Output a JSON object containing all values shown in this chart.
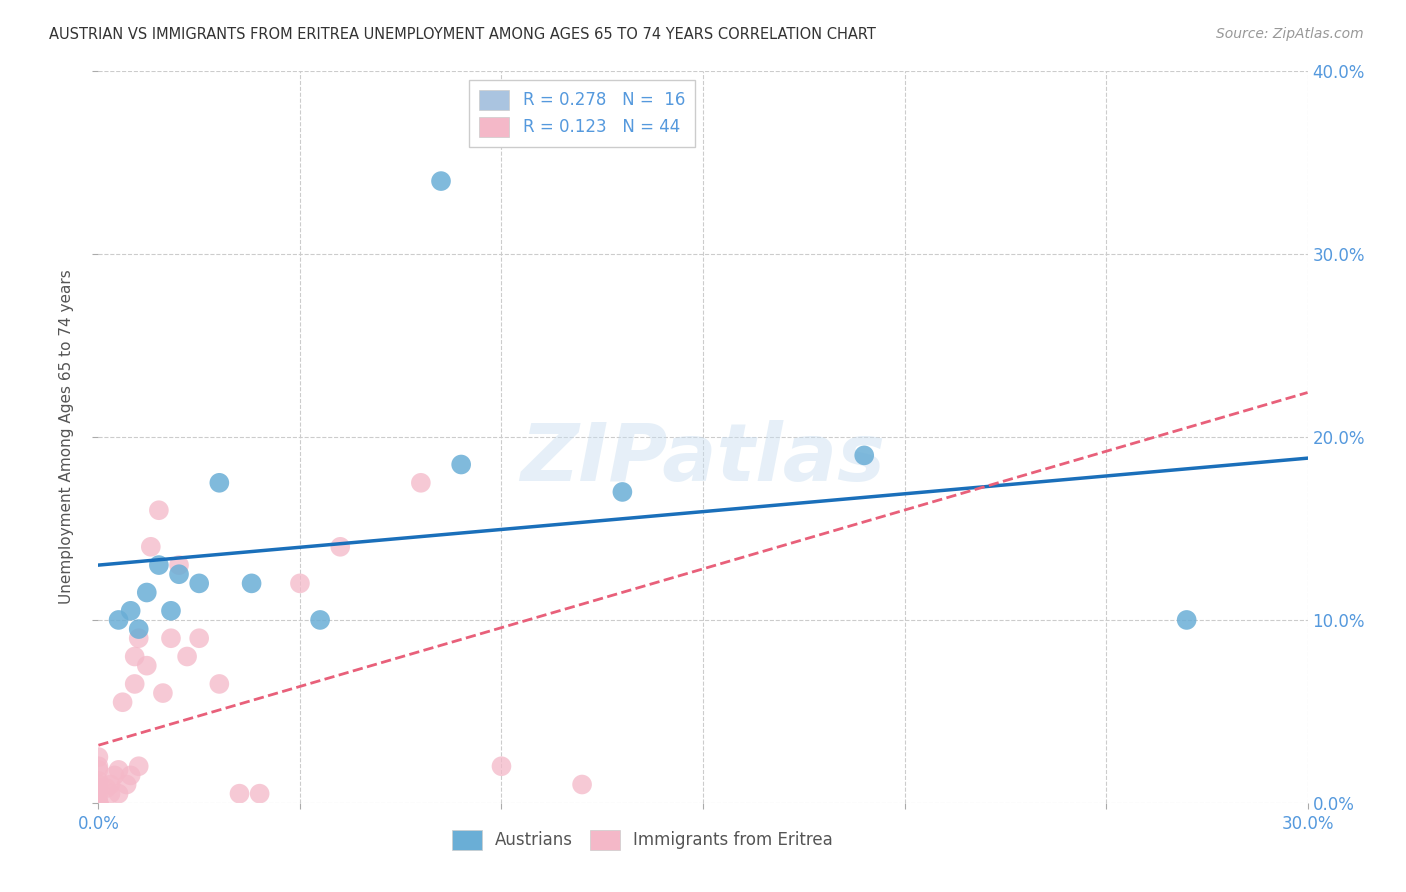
{
  "title": "AUSTRIAN VS IMMIGRANTS FROM ERITREA UNEMPLOYMENT AMONG AGES 65 TO 74 YEARS CORRELATION CHART",
  "source": "Source: ZipAtlas.com",
  "ylabel": "Unemployment Among Ages 65 to 74 years",
  "xlim": [
    0.0,
    0.3
  ],
  "ylim": [
    0.0,
    0.4
  ],
  "xticks": [
    0.0,
    0.05,
    0.1,
    0.15,
    0.2,
    0.25,
    0.3
  ],
  "yticks": [
    0.0,
    0.1,
    0.2,
    0.3,
    0.4
  ],
  "background_color": "#ffffff",
  "grid_color": "#cccccc",
  "watermark_text": "ZIPatlas",
  "legend_entries": [
    {
      "label_r": "R = ",
      "r_val": "0.278",
      "label_n": "  N = ",
      "n_val": " 16",
      "color": "#aac4e0"
    },
    {
      "label_r": "R = ",
      "r_val": "0.123",
      "label_n": "  N = ",
      "n_val": "44",
      "color": "#f4b8c8"
    }
  ],
  "bottom_legend": [
    "Austrians",
    "Immigrants from Eritrea"
  ],
  "austrians": {
    "scatter_color": "#6aaed6",
    "line_color": "#1a6fba",
    "x": [
      0.005,
      0.008,
      0.01,
      0.012,
      0.015,
      0.018,
      0.02,
      0.025,
      0.03,
      0.038,
      0.055,
      0.085,
      0.09,
      0.13,
      0.19,
      0.27
    ],
    "y": [
      0.1,
      0.105,
      0.095,
      0.115,
      0.13,
      0.105,
      0.125,
      0.12,
      0.175,
      0.12,
      0.1,
      0.34,
      0.185,
      0.17,
      0.19,
      0.1
    ]
  },
  "eritreans": {
    "scatter_color": "#f4b8c8",
    "line_color": "#e8607a",
    "x": [
      0.0,
      0.0,
      0.0,
      0.0,
      0.0,
      0.0,
      0.0,
      0.0,
      0.0,
      0.0,
      0.0,
      0.0,
      0.0,
      0.0,
      0.0,
      0.002,
      0.003,
      0.003,
      0.004,
      0.005,
      0.005,
      0.006,
      0.007,
      0.008,
      0.009,
      0.009,
      0.01,
      0.01,
      0.012,
      0.013,
      0.015,
      0.016,
      0.018,
      0.02,
      0.022,
      0.025,
      0.03,
      0.035,
      0.04,
      0.05,
      0.06,
      0.08,
      0.1,
      0.12
    ],
    "y": [
      0.0,
      0.0,
      0.0,
      0.0,
      0.0,
      0.0,
      0.0,
      0.0,
      0.005,
      0.008,
      0.01,
      0.012,
      0.018,
      0.02,
      0.025,
      0.008,
      0.005,
      0.01,
      0.015,
      0.005,
      0.018,
      0.055,
      0.01,
      0.015,
      0.065,
      0.08,
      0.02,
      0.09,
      0.075,
      0.14,
      0.16,
      0.06,
      0.09,
      0.13,
      0.08,
      0.09,
      0.065,
      0.005,
      0.005,
      0.12,
      0.14,
      0.175,
      0.02,
      0.01
    ]
  }
}
